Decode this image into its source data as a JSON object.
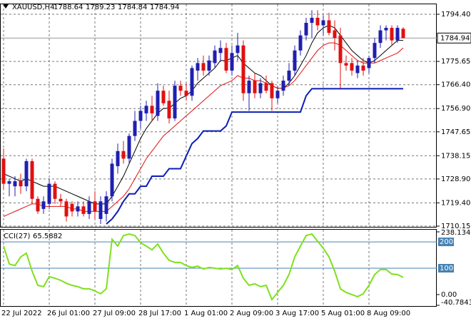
{
  "chart_data": [
    {
      "type": "candlestick",
      "title": "XAUUSD,H4",
      "up_color": "#1f1fb0",
      "down_color": "#e01010",
      "open": [
        1737,
        1727,
        1726,
        1728,
        1726,
        1736,
        1721,
        1717,
        1719,
        1727,
        1721,
        1720,
        1719,
        1716,
        1718,
        1715,
        1720,
        1713,
        1715,
        1722,
        1734,
        1740,
        1737,
        1746,
        1752,
        1755,
        1758,
        1754,
        1764,
        1760,
        1753,
        1766,
        1764,
        1762,
        1772,
        1775,
        1772,
        1775,
        1779,
        1781,
        1772,
        1779,
        1782,
        1763,
        1768,
        1763,
        1767,
        1767,
        1761,
        1764,
        1768,
        1772,
        1780,
        1786,
        1791,
        1793,
        1790,
        1792,
        1788,
        1786,
        1775,
        1775,
        1771,
        1774,
        1773,
        1777,
        1783,
        1788,
        1789,
        1784,
        1788.64
      ],
      "high": [
        1741,
        1729,
        1730,
        1731,
        1737,
        1737,
        1722,
        1722,
        1729,
        1728,
        1723,
        1721,
        1720,
        1720,
        1720,
        1722,
        1724,
        1722,
        1724,
        1737,
        1743,
        1744,
        1747,
        1756,
        1758,
        1760,
        1762,
        1767,
        1766,
        1764,
        1768,
        1768,
        1767,
        1774,
        1777,
        1778,
        1778,
        1782,
        1784,
        1783,
        1782,
        1787,
        1784,
        1770,
        1771,
        1769,
        1770,
        1768,
        1766,
        1770,
        1775,
        1782,
        1788,
        1793,
        1796,
        1796,
        1794,
        1795,
        1792,
        1789,
        1778,
        1777,
        1776,
        1777,
        1778,
        1785,
        1790,
        1790,
        1790,
        1790,
        1789.23
      ],
      "low": [
        1725,
        1722,
        1722,
        1723,
        1724,
        1719,
        1715,
        1715,
        1717,
        1719,
        1718,
        1712,
        1714,
        1714,
        1714,
        1713,
        1713,
        1711,
        1712,
        1720,
        1731,
        1735,
        1735,
        1744,
        1749,
        1752,
        1752,
        1752,
        1758,
        1751,
        1752,
        1762,
        1760,
        1760,
        1768,
        1770,
        1770,
        1773,
        1776,
        1771,
        1770,
        1776,
        1760,
        1756,
        1761,
        1761,
        1763,
        1756,
        1759,
        1762,
        1766,
        1770,
        1778,
        1784,
        1785,
        1788,
        1786,
        1786,
        1780,
        1765,
        1772,
        1770,
        1769,
        1770,
        1771,
        1775,
        1781,
        1784,
        1782,
        1783,
        1784.84
      ],
      "close": [
        1727,
        1728,
        1728,
        1726,
        1736,
        1721,
        1716,
        1720,
        1727,
        1721,
        1720,
        1714,
        1716,
        1718,
        1715,
        1720,
        1716,
        1720,
        1722,
        1735,
        1740,
        1737,
        1746,
        1752,
        1756,
        1758,
        1755,
        1764,
        1759,
        1753,
        1766,
        1764,
        1762,
        1773,
        1775,
        1772,
        1776,
        1780,
        1781,
        1772,
        1779,
        1782,
        1763,
        1768,
        1763,
        1767,
        1764,
        1761,
        1764,
        1768,
        1772,
        1780,
        1786,
        1791,
        1793,
        1790,
        1792,
        1787,
        1785,
        1775,
        1774,
        1772,
        1774,
        1772,
        1777,
        1783,
        1788,
        1789,
        1784,
        1789,
        1784.94
      ],
      "series": [
        {
          "color": "#000000",
          "values": [
            1731,
            1730,
            1729,
            1728,
            1729,
            1728,
            1727,
            1726,
            1726,
            1726,
            1725,
            1724,
            1723,
            1722,
            1721,
            1720,
            1719,
            1719,
            1719,
            1722,
            1726,
            1730,
            1735,
            1740,
            1745,
            1749,
            1752,
            1755,
            1757,
            1757,
            1759,
            1761,
            1762,
            1764,
            1767,
            1769,
            1771,
            1773,
            1776,
            1776,
            1777,
            1778,
            1775,
            1773,
            1771,
            1770,
            1768,
            1766,
            1765,
            1765,
            1767,
            1770,
            1774,
            1778,
            1783,
            1787,
            1789,
            1790,
            1789,
            1786,
            1783,
            1780,
            1778,
            1776,
            1775,
            1776,
            1778,
            1780,
            1782,
            1784,
            1784
          ]
        },
        {
          "color": "#e01010",
          "values": [
            1714,
            1715,
            1716,
            1717,
            1718,
            1719,
            1719,
            1718,
            1718,
            1718,
            1718,
            1718,
            1717,
            1717,
            1716,
            1716,
            1716,
            1716,
            1716,
            1718,
            1720,
            1722,
            1725,
            1729,
            1733,
            1737,
            1740,
            1743,
            1746,
            1748,
            1750,
            1752,
            1754,
            1756,
            1758,
            1760,
            1762,
            1764,
            1766,
            1767,
            1768,
            1770,
            1769,
            1769,
            1768,
            1768,
            1767,
            1766,
            1765,
            1765,
            1766,
            1768,
            1771,
            1774,
            1777,
            1780,
            1782,
            1783,
            1783,
            1782,
            1780,
            1778,
            1776,
            1775,
            1775,
            1775,
            1776,
            1777,
            1778,
            1779,
            1781
          ]
        },
        {
          "color": "#0a1eb4",
          "values": [
            null,
            null,
            null,
            null,
            null,
            null,
            null,
            null,
            null,
            null,
            null,
            null,
            null,
            null,
            null,
            null,
            null,
            null,
            1711,
            1713,
            1716,
            1720,
            1723,
            1723,
            1726,
            1726,
            1730,
            1730,
            1730,
            1733,
            1733,
            1733,
            1738,
            1743,
            1745,
            1748,
            1748,
            1748,
            1748,
            1750,
            1755.5,
            1755.5,
            1755.5,
            1755.5,
            1755.5,
            1755.5,
            1755.5,
            1755.5,
            1755.5,
            1755.5,
            1755.5,
            1755.5,
            1755.5,
            1762,
            1764.8,
            1764.8,
            1764.8,
            1764.8,
            1764.8,
            1764.8,
            1764.8,
            1764.8,
            1764.8,
            1764.8,
            1764.8,
            1764.8,
            1764.8,
            1764.8,
            1764.8,
            1764.8,
            1764.8
          ]
        }
      ],
      "ylim": [
        1709.87,
        1798.37
      ],
      "yticks": [
        {
          "value": 1794.4,
          "label": "1794.40"
        },
        1775.65,
        {
          "value": 1766.4,
          "label": "1766.40"
        },
        {
          "value": 1756.9,
          "label": "1756.90"
        },
        1747.65,
        1738.15,
        {
          "value": 1728.9,
          "label": "1728.90"
        },
        {
          "value": 1719.4,
          "label": "1719.40"
        },
        1710.15
      ],
      "xlabels": [
        {
          "value": 0,
          "label": "22 Jul 2022"
        },
        {
          "value": 8,
          "label": "26 Jul 01:00"
        },
        {
          "value": 16,
          "label": "27 Jul 09:00"
        },
        {
          "value": 24,
          "label": "28 Jul 17:00"
        },
        {
          "value": 32,
          "label": "1 Aug 01:00"
        },
        {
          "value": 40,
          "label": "2 Aug 09:00"
        },
        {
          "value": 48,
          "label": "3 Aug 17:00"
        },
        {
          "value": 56,
          "label": "5 Aug 01:00"
        },
        {
          "value": 64,
          "label": "8 Aug 09:00"
        }
      ],
      "grid": true
    },
    {
      "type": "line",
      "title": "CCI(27)",
      "color": "#7fe01e",
      "values": [
        184,
        116,
        110,
        143,
        157,
        89,
        35,
        30,
        68,
        62,
        54,
        43,
        35,
        30,
        22,
        22,
        14,
        3,
        22,
        210,
        184,
        224,
        230,
        224,
        197,
        184,
        170,
        192,
        157,
        130,
        122,
        122,
        110,
        103,
        108,
        97,
        103,
        100,
        97,
        100,
        95,
        110,
        62,
        35,
        41,
        30,
        35,
        -19,
        8,
        35,
        76,
        143,
        184,
        224,
        230,
        203,
        176,
        143,
        89,
        22,
        8,
        0,
        -8,
        3,
        35,
        76,
        95,
        95,
        78,
        76,
        65.5882
      ],
      "ylim": [
        -40.7843,
        238.1341
      ],
      "yticks": [
        238.1341,
        {
          "value": 0,
          "label": "0.00"
        },
        -40.7843
      ],
      "levels": [
        200,
        100
      ],
      "level_color": "#4682b4"
    }
  ]
}
